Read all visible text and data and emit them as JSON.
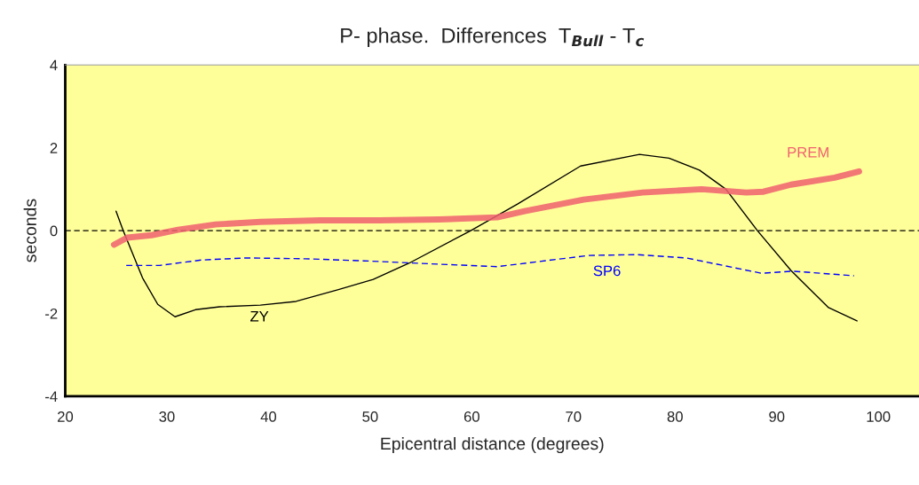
{
  "chart_data": {
    "type": "line",
    "title": "P- phase.  Differences  T$_{Bull}$ - T$_{c}$",
    "xlabel": "Epicentral distance (degrees)",
    "ylabel": "seconds",
    "xlim": [
      20,
      104
    ],
    "xticks": [
      20,
      30,
      40,
      50,
      60,
      70,
      80,
      90,
      100
    ],
    "ylim": [
      -4,
      4
    ],
    "yticks": [
      -4,
      -2,
      0,
      2,
      4
    ],
    "grid": false,
    "legend": false,
    "marker": "none",
    "ref_lines": [
      {
        "axis": "y",
        "value": 0,
        "color": "#000000",
        "line_style": "dashed"
      }
    ],
    "series": [
      {
        "name": "ZY",
        "color": "#000000",
        "line_style": "solid",
        "x": [
          25.0,
          25.7,
          27.6,
          29.1,
          30.8,
          32.8,
          35.2,
          39.2,
          42.7,
          46.8,
          50.3,
          53.8,
          59.9,
          64.5,
          70.7,
          76.5,
          79.4,
          82.4,
          85.0,
          88.1,
          91.4,
          95.1,
          97.9
        ],
        "values": [
          0.47,
          0.0,
          -1.14,
          -1.78,
          -2.08,
          -1.91,
          -1.84,
          -1.8,
          -1.71,
          -1.43,
          -1.18,
          -0.79,
          0.0,
          0.64,
          1.56,
          1.84,
          1.75,
          1.46,
          1.0,
          0.0,
          -0.96,
          -1.86,
          -2.18
        ]
      },
      {
        "name": "PREM",
        "color": "#f06070",
        "line_style": "solid",
        "x": [
          24.8,
          26.1,
          28.5,
          31.1,
          34.8,
          39.2,
          45.1,
          50.9,
          56.7,
          62.5,
          65.2,
          71.0,
          76.8,
          82.6,
          87.0,
          88.7,
          91.4,
          95.7,
          98.1
        ],
        "values": [
          -0.34,
          -0.17,
          -0.11,
          0.02,
          0.15,
          0.21,
          0.25,
          0.25,
          0.27,
          0.32,
          0.47,
          0.75,
          0.92,
          1.0,
          0.92,
          0.94,
          1.11,
          1.28,
          1.43
        ]
      },
      {
        "name": "SP6",
        "color": "#0000ff",
        "line_style": "dashed",
        "x": [
          26.0,
          29.3,
          33.4,
          37.8,
          43.6,
          49.4,
          56.7,
          62.5,
          64.5,
          71.5,
          76.2,
          81.1,
          88.5,
          91.6,
          97.6
        ],
        "values": [
          -0.84,
          -0.84,
          -0.71,
          -0.66,
          -0.68,
          -0.73,
          -0.81,
          -0.87,
          -0.81,
          -0.6,
          -0.58,
          -0.66,
          -1.03,
          -0.98,
          -1.09
        ]
      }
    ]
  }
}
